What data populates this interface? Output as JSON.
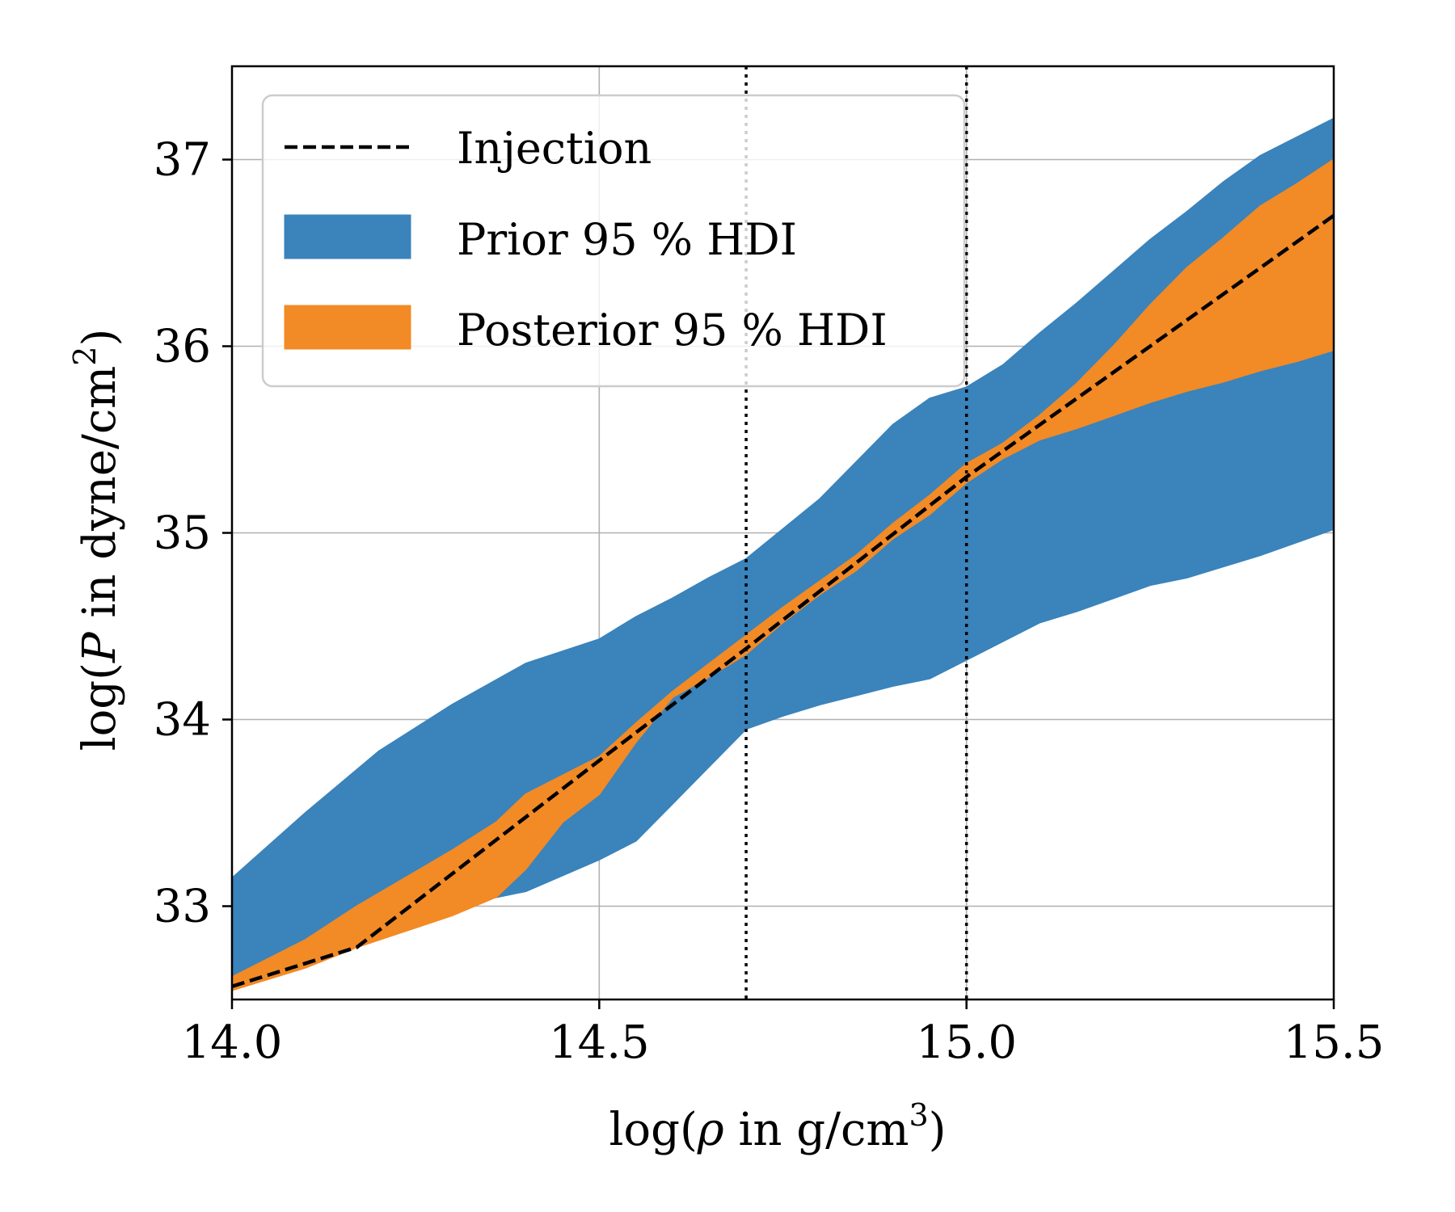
{
  "chart_data": {
    "type": "area",
    "title": "",
    "xlabel": {
      "prefix": "log(",
      "symbol": "ρ",
      "mid": " in g/cm",
      "sup": "3",
      "suffix": ")"
    },
    "ylabel": {
      "prefix": "log(",
      "symbol": "P",
      "mid": " in dyne/cm",
      "sup": "2",
      "suffix": ")"
    },
    "xlim": [
      14.0,
      15.5
    ],
    "ylim": [
      32.5,
      37.5
    ],
    "xticks": [
      14.0,
      14.5,
      15.0,
      15.5
    ],
    "xtick_labels": [
      "14.0",
      "14.5",
      "15.0",
      "15.5"
    ],
    "yticks": [
      33,
      34,
      35,
      36,
      37
    ],
    "ytick_labels": [
      "33",
      "34",
      "35",
      "36",
      "37"
    ],
    "grid": true,
    "vlines": [
      14.7,
      15.0
    ],
    "legend": {
      "position": "upper-left",
      "entries": [
        {
          "label": "Injection",
          "kind": "dashed-line",
          "color": "#000000"
        },
        {
          "label": "Prior 95 % HDI",
          "kind": "patch",
          "color": "#3a83bb"
        },
        {
          "label": "Posterior 95 % HDI",
          "kind": "patch",
          "color": "#f28a26"
        }
      ]
    },
    "series": [
      {
        "name": "Prior 95 % HDI",
        "color": "#3a83bb",
        "x": [
          14.0,
          14.1,
          14.2,
          14.3,
          14.4,
          14.5,
          14.55,
          14.6,
          14.65,
          14.7,
          14.75,
          14.8,
          14.85,
          14.9,
          14.95,
          15.0,
          15.05,
          15.1,
          15.15,
          15.2,
          15.25,
          15.3,
          15.35,
          15.4,
          15.45,
          15.5
        ],
        "lower": [
          32.55,
          32.7,
          32.85,
          33.0,
          33.08,
          33.25,
          33.35,
          33.55,
          33.75,
          33.95,
          34.02,
          34.08,
          34.13,
          34.18,
          34.22,
          34.32,
          34.42,
          34.52,
          34.58,
          34.65,
          34.72,
          34.76,
          34.82,
          34.88,
          34.95,
          35.02
        ],
        "upper": [
          33.15,
          33.5,
          33.83,
          34.08,
          34.3,
          34.43,
          34.55,
          34.65,
          34.76,
          34.86,
          35.02,
          35.18,
          35.38,
          35.58,
          35.72,
          35.78,
          35.9,
          36.07,
          36.23,
          36.4,
          36.57,
          36.72,
          36.88,
          37.02,
          37.12,
          37.22
        ]
      },
      {
        "name": "Posterior 95 % HDI",
        "color": "#f28a26",
        "x": [
          14.0,
          14.1,
          14.17,
          14.3,
          14.36,
          14.4,
          14.45,
          14.5,
          14.55,
          14.6,
          14.65,
          14.7,
          14.75,
          14.8,
          14.85,
          14.9,
          14.95,
          15.0,
          15.05,
          15.1,
          15.15,
          15.2,
          15.25,
          15.3,
          15.35,
          15.4,
          15.45,
          15.5
        ],
        "lower": [
          32.55,
          32.67,
          32.78,
          32.95,
          33.05,
          33.2,
          33.45,
          33.6,
          33.88,
          34.12,
          34.23,
          34.35,
          34.52,
          34.67,
          34.8,
          34.97,
          35.1,
          35.27,
          35.4,
          35.5,
          35.56,
          35.63,
          35.7,
          35.76,
          35.81,
          35.87,
          35.92,
          35.98
        ],
        "upper": [
          32.62,
          32.82,
          33.0,
          33.3,
          33.45,
          33.6,
          33.7,
          33.8,
          33.98,
          34.15,
          34.3,
          34.45,
          34.6,
          34.74,
          34.88,
          35.05,
          35.2,
          35.37,
          35.48,
          35.63,
          35.8,
          36.0,
          36.22,
          36.42,
          36.58,
          36.75,
          36.87,
          37.0
        ]
      },
      {
        "name": "Injection",
        "color": "#000000",
        "x": [
          14.0,
          14.17,
          14.5,
          14.7,
          15.0,
          15.5
        ],
        "y": [
          32.57,
          32.78,
          33.78,
          34.38,
          35.3,
          36.7
        ]
      }
    ]
  }
}
